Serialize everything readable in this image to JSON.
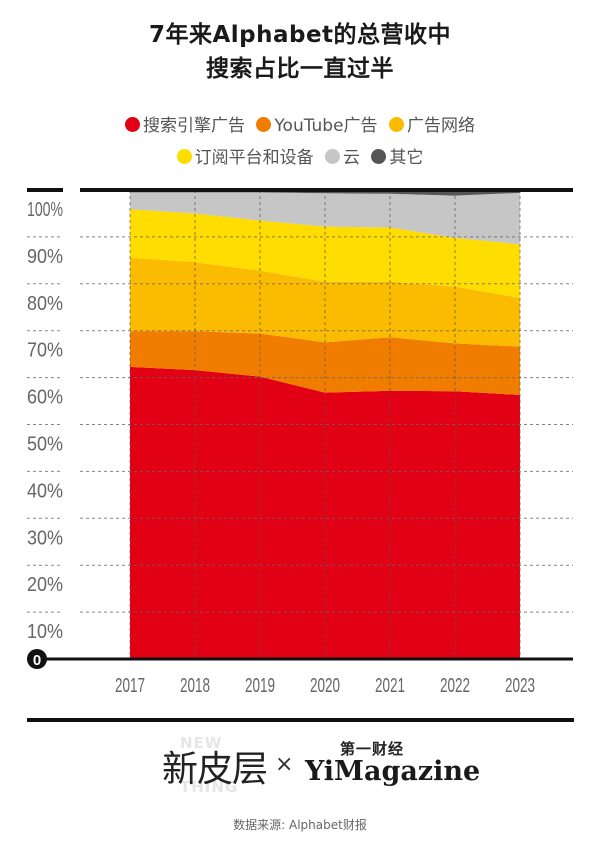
{
  "title": {
    "line1": "7年来Alphabet的总营收中",
    "line2": "搜索占比一直过半"
  },
  "legend": [
    {
      "label": "搜索引擎广告",
      "color": "#e20015"
    },
    {
      "label": "YouTube广告",
      "color": "#f07c00"
    },
    {
      "label": "广告网络",
      "color": "#fbbb00"
    },
    {
      "label": "订阅平台和设备",
      "color": "#ffdd00"
    },
    {
      "label": "云",
      "color": "#c6c6c6"
    },
    {
      "label": "其它",
      "color": "#555555"
    }
  ],
  "chart_data": {
    "type": "area",
    "stacked": true,
    "normalized": true,
    "title": "7年来Alphabet的总营收中搜索占比一直过半",
    "x": [
      "2017",
      "2018",
      "2019",
      "2020",
      "2021",
      "2022",
      "2023"
    ],
    "ylim": [
      0,
      100
    ],
    "yticks": [
      0,
      10,
      20,
      30,
      40,
      50,
      60,
      70,
      80,
      90,
      100
    ],
    "ytick_labels": [
      "0",
      "10%",
      "20%",
      "30%",
      "40%",
      "50%",
      "60%",
      "70%",
      "80%",
      "90%",
      "100%"
    ],
    "grid": true,
    "legend_position": "top",
    "series": [
      {
        "name": "搜索引擎广告",
        "color": "#e20015",
        "values": [
          62.3,
          61.6,
          60.2,
          56.8,
          57.2,
          57.1,
          56.3
        ]
      },
      {
        "name": "YouTube广告",
        "color": "#f07c00",
        "values": [
          7.6,
          8.3,
          9.2,
          10.7,
          11.4,
          10.2,
          10.3
        ]
      },
      {
        "name": "广告网络",
        "color": "#fbbb00",
        "values": [
          15.7,
          14.7,
          13.4,
          12.9,
          11.8,
          12.1,
          10.4
        ]
      },
      {
        "name": "订阅平台和设备",
        "color": "#ffdd00",
        "values": [
          10.3,
          10.4,
          10.7,
          11.8,
          11.6,
          10.4,
          11.4
        ]
      },
      {
        "name": "云",
        "color": "#c6c6c6",
        "values": [
          3.6,
          4.5,
          6.0,
          7.1,
          7.2,
          9.0,
          11.0
        ]
      },
      {
        "name": "其它",
        "color": "#555555",
        "values": [
          0.5,
          0.5,
          0.5,
          0.7,
          0.8,
          1.2,
          0.6
        ]
      }
    ]
  },
  "footer": {
    "logo_left": "新皮层",
    "logo_left_bg_top": "NEW",
    "logo_left_bg_bottom": "THING",
    "separator": "×",
    "logo_right_cn": "第一财经",
    "logo_right_en": "YiMagazine",
    "source": "数据来源: Alphabet财报"
  }
}
